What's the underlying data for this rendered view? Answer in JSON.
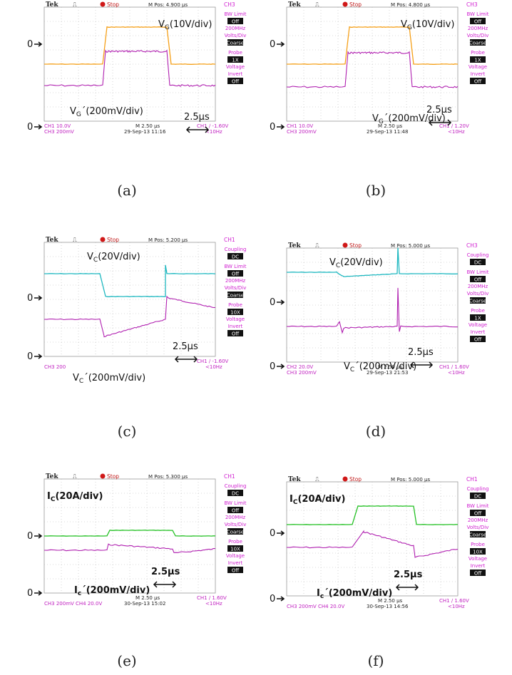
{
  "panels": [
    {
      "id": "a",
      "caption": "(a)",
      "header": {
        "brand": "Tek",
        "state": "Stop",
        "mpos": "M Pos: 4.900 µs",
        "channel": "CH3"
      },
      "channel_color_key": "orange",
      "colors": {
        "top": "#f5a019",
        "bottom": "#b020b0"
      },
      "menu": [
        {
          "label": "BW Limit",
          "value": "Off",
          "sub": "200MHz"
        },
        {
          "label": "Volts/Div",
          "value": "Coarse",
          "sub": ""
        },
        {
          "label": "Probe",
          "value": "1X",
          "sub": "Voltage"
        },
        {
          "label": "Invert",
          "value": "Off",
          "sub": ""
        }
      ],
      "footer": {
        "line1_left": "CH1  10.0V",
        "line2_left": "CH3  200mV",
        "mid1": "M 2.50 µs",
        "mid2": "29-Sep-13 11:16",
        "right1": "CH1 ∕ -1.60V",
        "right2": "<10Hz"
      },
      "labels": {
        "top_sym": "V",
        "top_sub": "G",
        "top_rest": "(10V/div)",
        "bot_sym": "V",
        "bot_sub": "G",
        "bot_rest": "´(200mV/div)",
        "time": "2.5µs"
      },
      "zero": "0"
    },
    {
      "id": "b",
      "caption": "(b)",
      "header": {
        "brand": "Tek",
        "state": "Stop",
        "mpos": "M Pos: 4.800 µs",
        "channel": "CH3"
      },
      "colors": {
        "top": "#f5a019",
        "bottom": "#b020b0"
      },
      "menu": [
        {
          "label": "BW Limit",
          "value": "Off",
          "sub": "200MHz"
        },
        {
          "label": "Volts/Div",
          "value": "Coarse",
          "sub": ""
        },
        {
          "label": "Probe",
          "value": "1X",
          "sub": "Voltage"
        },
        {
          "label": "Invert",
          "value": "Off",
          "sub": ""
        }
      ],
      "footer": {
        "line1_left": "CH1  10.0V",
        "line2_left": "CH3  200mV",
        "mid1": "M 2.50 µs",
        "mid2": "29-Sep-13 11:48",
        "right1": "CH1 ∕ 1.20V",
        "right2": "<10Hz"
      },
      "labels": {
        "top_sym": "V",
        "top_sub": "G",
        "top_rest": "(10V/div)",
        "bot_sym": "V",
        "bot_sub": "G",
        "bot_rest": "´(200mV/div)",
        "time": "2.5µs"
      },
      "zero": "0"
    },
    {
      "id": "c",
      "caption": "(c)",
      "header": {
        "brand": "Tek",
        "state": "Stop",
        "mpos": "M Pos: 5.200 µs",
        "channel": "CH1"
      },
      "colors": {
        "top": "#1fb8c0",
        "bottom": "#b020b0"
      },
      "menu": [
        {
          "label": "Coupling",
          "value": "DC",
          "sub": ""
        },
        {
          "label": "BW Limit",
          "value": "Off",
          "sub": "200MHz"
        },
        {
          "label": "Volts/Div",
          "value": "Coarse",
          "sub": ""
        },
        {
          "label": "Probe",
          "value": "10X",
          "sub": "Voltage"
        },
        {
          "label": "Invert",
          "value": "Off",
          "sub": ""
        }
      ],
      "footer": {
        "line1_left": "",
        "line2_left": "CH3  200",
        "mid1": "",
        "mid2": "",
        "right1": "CH1 ∕ -1.60V",
        "right2": "<10Hz"
      },
      "labels": {
        "top_sym": "V",
        "top_sub": "C",
        "top_rest": "(20V/div)",
        "bot_sym": "V",
        "bot_sub": "C",
        "bot_rest": "´(200mV/div)",
        "time": "2.5µs"
      },
      "zero": "0"
    },
    {
      "id": "d",
      "caption": "(d)",
      "header": {
        "brand": "Tek",
        "state": "Stop",
        "mpos": "M Pos: 5.000 µs",
        "channel": "CH3"
      },
      "colors": {
        "top": "#1fb8c0",
        "bottom": "#b020b0"
      },
      "menu": [
        {
          "label": "Coupling",
          "value": "DC",
          "sub": ""
        },
        {
          "label": "BW Limit",
          "value": "Off",
          "sub": "200MHz"
        },
        {
          "label": "Volts/Div",
          "value": "Coarse",
          "sub": ""
        },
        {
          "label": "Probe",
          "value": "1X",
          "sub": "Voltage"
        },
        {
          "label": "Invert",
          "value": "Off",
          "sub": ""
        }
      ],
      "footer": {
        "line1_left": "CH2  20.0V",
        "line2_left": "CH3  200mV",
        "mid1": "M 2.50 µs",
        "mid2": "29-Sep-13 21:53",
        "right1": "CH1 ∕ 1.60V",
        "right2": "<10Hz"
      },
      "labels": {
        "top_sym": "V",
        "top_sub": "C",
        "top_rest": "(20V/div)",
        "bot_sym": "V",
        "bot_sub": "C",
        "bot_rest": "´(200mV/div)",
        "time": "2.5µs"
      },
      "zero": "0"
    },
    {
      "id": "e",
      "caption": "(e)",
      "header": {
        "brand": "Tek",
        "state": "Stop",
        "mpos": "M Pos: 5.300 µs",
        "channel": "CH1"
      },
      "colors": {
        "top": "#22c022",
        "bottom": "#b020b0"
      },
      "menu": [
        {
          "label": "Coupling",
          "value": "DC",
          "sub": ""
        },
        {
          "label": "BW Limit",
          "value": "Off",
          "sub": "200MHz"
        },
        {
          "label": "Volts/Div",
          "value": "Coarse",
          "sub": ""
        },
        {
          "label": "Probe",
          "value": "10X",
          "sub": "Voltage"
        },
        {
          "label": "Invert",
          "value": "Off",
          "sub": ""
        }
      ],
      "footer": {
        "line1_left": "",
        "line2_left": "CH3  200mV    CH4  20.0V",
        "mid1": "M 2.50 µs",
        "mid2": "30-Sep-13 15:02",
        "right1": "CH1 ∕ 1.60V",
        "right2": "<10Hz"
      },
      "labels": {
        "top_sym": "I",
        "top_sub": "C",
        "top_rest": "(20A/div)",
        "bot_sym": "I",
        "bot_sub": "c",
        "bot_rest": "´(200mV/div)",
        "time": "2.5µs"
      },
      "zero": "0"
    },
    {
      "id": "f",
      "caption": "(f)",
      "header": {
        "brand": "Tek",
        "state": "Stop",
        "mpos": "M Pos: 5.000 µs",
        "channel": "CH1"
      },
      "colors": {
        "top": "#22c022",
        "bottom": "#b020b0"
      },
      "menu": [
        {
          "label": "Coupling",
          "value": "DC",
          "sub": ""
        },
        {
          "label": "BW Limit",
          "value": "Off",
          "sub": "200MHz"
        },
        {
          "label": "Volts/Div",
          "value": "Coarse",
          "sub": ""
        },
        {
          "label": "Probe",
          "value": "10X",
          "sub": "Voltage"
        },
        {
          "label": "Invert",
          "value": "Off",
          "sub": ""
        }
      ],
      "footer": {
        "line1_left": "",
        "line2_left": "CH3  200mV    CH4  20.0V",
        "mid1": "M 2.50 µs",
        "mid2": "30-Sep-13 14:56",
        "right1": "CH1 ∕ 1.60V",
        "right2": "<10Hz"
      },
      "labels": {
        "top_sym": "I",
        "top_sub": "C",
        "top_rest": "(20A/div)",
        "bot_sym": "I",
        "bot_sub": "c",
        "bot_rest": "´(200mV/div)",
        "time": "2.5µs"
      },
      "zero": "0"
    }
  ],
  "ui_colors": {
    "header_bg": "#ffffff",
    "grid": "#b8b8b8",
    "stop_dot": "#d01818",
    "footer_text": "#c020c0",
    "menu_text": "#d020d0",
    "menu_value_bg": "#111111"
  }
}
